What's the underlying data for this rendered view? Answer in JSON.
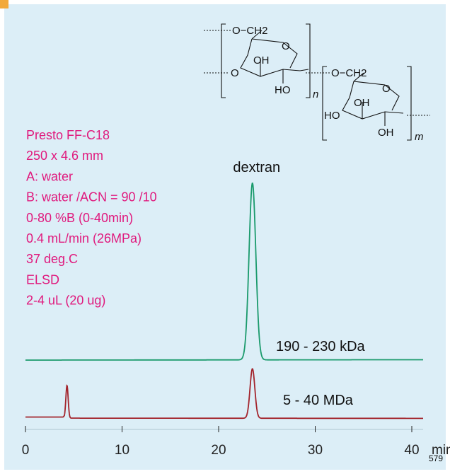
{
  "colors": {
    "panel_bg": "#dceef7",
    "accent_corner": "#f2a93a",
    "conditions_text": "#e0197d",
    "series_190_230": "#1a9a6c",
    "series_5_40": "#a3242c"
  },
  "conditions": [
    "Presto FF-C18",
    "250 x 4.6 mm",
    "A: water",
    "B: water /ACN = 90 /10",
    "0-80 %B (0-40min)",
    "0.4 mL/min (26MPa)",
    "37 deg.C",
    "ELSD",
    "2-4 uL (20 ug)"
  ],
  "structure": {
    "o_ch2_top": "O−CH2",
    "oh_top": "OH",
    "ho_top": "HO",
    "o_left": "O",
    "o_ring_top": "O",
    "sub_n": "n",
    "o_ch2_bottom": "O−CH2",
    "oh_bottom": "OH",
    "ho_bottom": "HO",
    "oh_bottom2": "OH",
    "o_ring_bottom": "O",
    "sub_m": "m"
  },
  "figure_number": "579",
  "chart_data": {
    "type": "line",
    "title": "",
    "xlabel": "min",
    "ylabel": "",
    "x_ticks": [
      0,
      10,
      20,
      30,
      40
    ],
    "x_tick_labels": [
      "0",
      "10",
      "20",
      "30",
      "40"
    ],
    "x_unit_label": "min",
    "xlim": [
      0,
      45
    ],
    "grid": false,
    "annotations": [
      {
        "text": "dextran",
        "x": 23.5
      }
    ],
    "series": [
      {
        "name": "190 - 230 kDa",
        "baseline": 1.0,
        "peaks": [
          {
            "x": 23.5,
            "height": 10.0,
            "width": 0.35
          }
        ]
      },
      {
        "name": "5 - 40 MDa",
        "baseline": 0.0,
        "peaks": [
          {
            "x": 4.3,
            "height": 1.85,
            "width": 0.12
          },
          {
            "x": 23.5,
            "height": 2.8,
            "width": 0.25
          }
        ]
      }
    ]
  }
}
